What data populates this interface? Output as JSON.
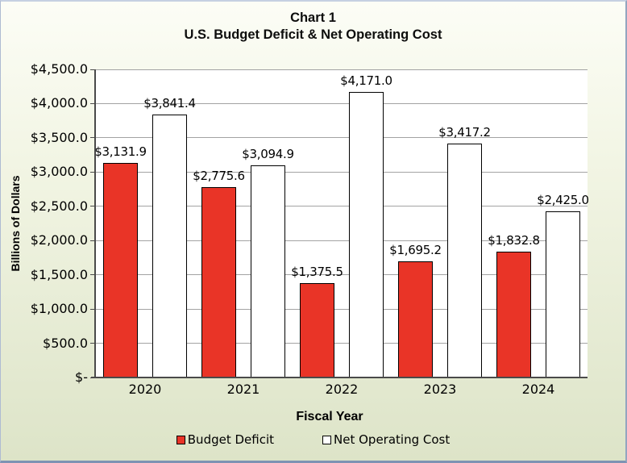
{
  "colors": {
    "page_background_top": "#FCFDF6",
    "page_background_bottom": "#DDE4C8",
    "frame_border_blue": "#7E93B3",
    "plot_background": "#FFFFFF",
    "gridline": "#A3A3A3",
    "axis_line": "#4A4A4A",
    "deficit_red": "#E93427",
    "operating_cost_white": "#FFFFFF"
  },
  "chart_data": {
    "type": "bar",
    "title": "Chart 1",
    "subtitle": "U.S. Budget Deficit & Net Operating Cost",
    "categories": [
      "2020",
      "2021",
      "2022",
      "2023",
      "2024"
    ],
    "series": [
      {
        "name": "Budget Deficit",
        "color": "#E93427",
        "values": [
          3131.9,
          2775.6,
          1375.5,
          1695.2,
          1832.8
        ],
        "labels": [
          "$3,131.9",
          "$2,775.6",
          "$1,375.5",
          "$1,695.2",
          "$1,832.8"
        ]
      },
      {
        "name": "Net Operating Cost",
        "color": "#FFFFFF",
        "values": [
          3841.4,
          3094.9,
          4171.0,
          3417.2,
          2425.0
        ],
        "labels": [
          "$3,841.4",
          "$3,094.9",
          "$4,171.0",
          "$3,417.2",
          "$2,425.0"
        ]
      }
    ],
    "xlabel": "Fiscal Year",
    "ylabel": "Billions of Dollars",
    "ylim": [
      0,
      4500
    ],
    "ytick_step": 500,
    "ytick_labels": [
      "$-",
      "$500.0",
      "$1,000.0",
      "$1,500.0",
      "$2,000.0",
      "$2,500.0",
      "$3,000.0",
      "$3,500.0",
      "$4,000.0",
      "$4,500.0"
    ],
    "grid": true,
    "legend_position": "bottom"
  }
}
